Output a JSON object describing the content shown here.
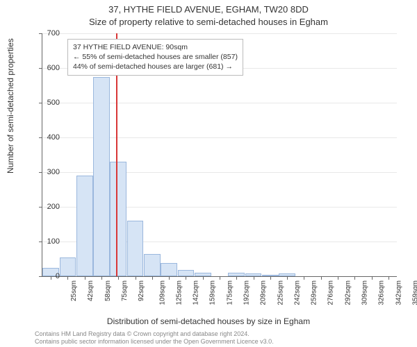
{
  "title": "37, HYTHE FIELD AVENUE, EGHAM, TW20 8DD",
  "subtitle": "Size of property relative to semi-detached houses in Egham",
  "ylabel": "Number of semi-detached properties",
  "xlabel": "Distribution of semi-detached houses by size in Egham",
  "footnote_line1": "Contains HM Land Registry data © Crown copyright and database right 2024.",
  "footnote_line2": "Contains public sector information licensed under the Open Government Licence v3.0.",
  "annotation": {
    "line1": "37 HYTHE FIELD AVENUE: 90sqm",
    "line2": "← 55% of semi-detached houses are smaller (857)",
    "line3": "44% of semi-detached houses are larger (681) →"
  },
  "chart": {
    "type": "histogram",
    "background_color": "#ffffff",
    "grid_color": "#e8e8e8",
    "axis_color": "#666666",
    "bar_fill": "#d6e4f5",
    "bar_stroke": "#9ab7dd",
    "refline_color": "#d93636",
    "refline_at_sqm": 90,
    "x_start": 17,
    "x_bin_width_sqm": 16.67,
    "ylim": [
      0,
      700
    ],
    "ytick_step": 100,
    "yticks": [
      0,
      100,
      200,
      300,
      400,
      500,
      600,
      700
    ],
    "xticks": [
      "25sqm",
      "42sqm",
      "58sqm",
      "75sqm",
      "92sqm",
      "109sqm",
      "125sqm",
      "142sqm",
      "159sqm",
      "175sqm",
      "192sqm",
      "209sqm",
      "225sqm",
      "242sqm",
      "259sqm",
      "276sqm",
      "292sqm",
      "309sqm",
      "326sqm",
      "342sqm",
      "359sqm"
    ],
    "values": [
      25,
      55,
      290,
      575,
      330,
      160,
      65,
      38,
      18,
      10,
      0,
      10,
      8,
      5,
      8,
      0,
      0,
      0,
      0,
      0,
      0
    ],
    "title_fontsize": 13,
    "label_fontsize": 12,
    "tick_fontsize": 11
  }
}
